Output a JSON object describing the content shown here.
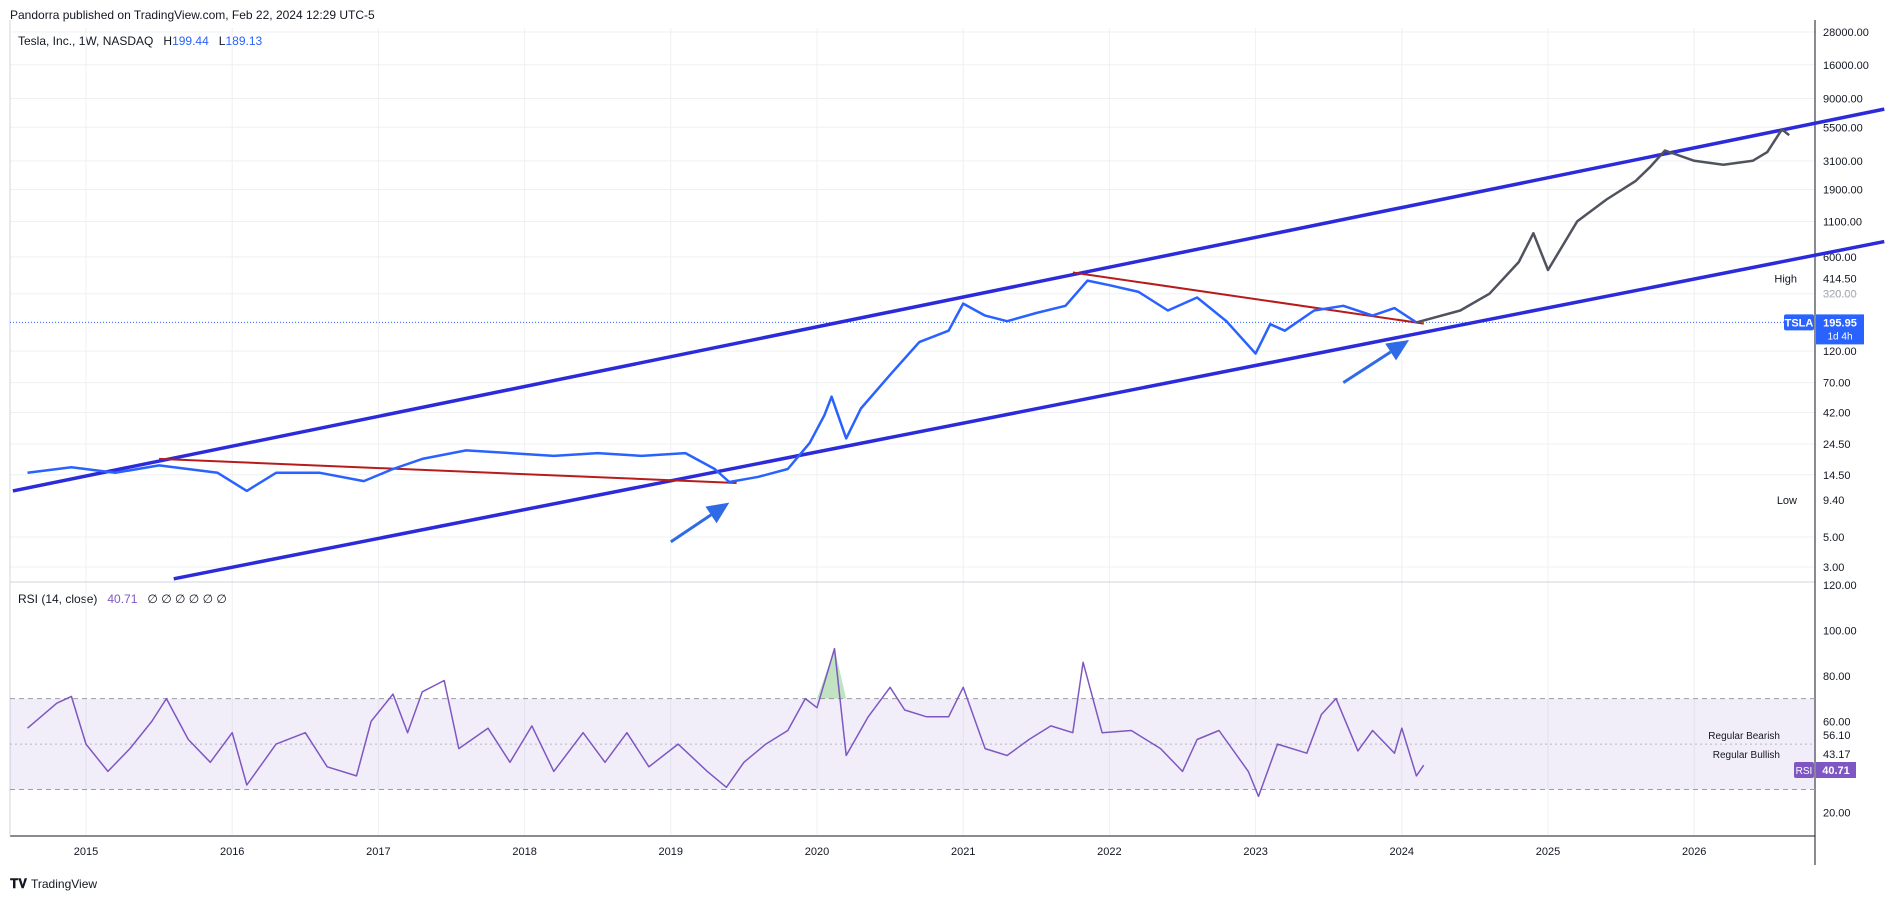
{
  "header": {
    "published": "Pandorra published on TradingView.com, Feb 22, 2024 12:29 UTC-5"
  },
  "legend": {
    "symbol": "Tesla, Inc., 1W, NASDAQ",
    "high_label": "H",
    "high_value": "199.44",
    "low_label": "L",
    "low_value": "189.13"
  },
  "rsi_legend": {
    "label": "RSI (14, close)",
    "value": "40.71",
    "placeholders": "∅ ∅ ∅ ∅ ∅ ∅"
  },
  "footer": {
    "brand": "TradingView"
  },
  "colors": {
    "price": "#2962ff",
    "projection": "#50535e",
    "channel": "#2b2bd9",
    "trendline": "#b71c1c",
    "rsi": "#7e57c2",
    "arrow": "#2f6be6"
  },
  "chart_data": [
    {
      "type": "line",
      "scale": "log",
      "series_main": "TSLA",
      "x_ticks": [
        "2015",
        "2016",
        "2017",
        "2018",
        "2019",
        "2020",
        "2021",
        "2022",
        "2023",
        "2024",
        "2025",
        "2026"
      ],
      "y_ticks": [
        "28000.00",
        "16000.00",
        "9000.00",
        "5500.00",
        "3100.00",
        "1900.00",
        "1100.00",
        "600.00",
        "414.50",
        "320.00",
        "195.95",
        "120.00",
        "70.00",
        "42.00",
        "24.50",
        "14.50",
        "9.40",
        "5.00",
        "3.00"
      ],
      "ylim": [
        2.4,
        30000
      ],
      "price_points": [
        [
          2014.6,
          15
        ],
        [
          2014.9,
          16.5
        ],
        [
          2015.2,
          15
        ],
        [
          2015.5,
          17
        ],
        [
          2015.9,
          15
        ],
        [
          2016.1,
          11
        ],
        [
          2016.3,
          15
        ],
        [
          2016.6,
          15
        ],
        [
          2016.9,
          13
        ],
        [
          2017.1,
          16
        ],
        [
          2017.3,
          19
        ],
        [
          2017.6,
          22
        ],
        [
          2017.9,
          21
        ],
        [
          2018.2,
          20
        ],
        [
          2018.5,
          21
        ],
        [
          2018.8,
          20
        ],
        [
          2019.1,
          21
        ],
        [
          2019.3,
          16
        ],
        [
          2019.4,
          12.8
        ],
        [
          2019.6,
          14
        ],
        [
          2019.8,
          16
        ],
        [
          2019.95,
          25
        ],
        [
          2020.05,
          40
        ],
        [
          2020.1,
          55
        ],
        [
          2020.2,
          27
        ],
        [
          2020.3,
          45
        ],
        [
          2020.5,
          80
        ],
        [
          2020.7,
          140
        ],
        [
          2020.9,
          170
        ],
        [
          2021.0,
          270
        ],
        [
          2021.15,
          220
        ],
        [
          2021.3,
          200
        ],
        [
          2021.5,
          230
        ],
        [
          2021.7,
          260
        ],
        [
          2021.85,
          400
        ],
        [
          2022.0,
          370
        ],
        [
          2022.2,
          330
        ],
        [
          2022.4,
          240
        ],
        [
          2022.6,
          300
        ],
        [
          2022.8,
          200
        ],
        [
          2023.0,
          115
        ],
        [
          2023.1,
          190
        ],
        [
          2023.2,
          170
        ],
        [
          2023.4,
          240
        ],
        [
          2023.6,
          260
        ],
        [
          2023.8,
          220
        ],
        [
          2023.95,
          250
        ],
        [
          2024.1,
          195.95
        ]
      ],
      "projection_points": [
        [
          2024.1,
          196
        ],
        [
          2024.4,
          240
        ],
        [
          2024.6,
          320
        ],
        [
          2024.8,
          550
        ],
        [
          2024.9,
          900
        ],
        [
          2025.0,
          480
        ],
        [
          2025.2,
          1100
        ],
        [
          2025.4,
          1600
        ],
        [
          2025.6,
          2200
        ],
        [
          2025.7,
          2800
        ],
        [
          2025.8,
          3700
        ],
        [
          2026.0,
          3100
        ],
        [
          2026.2,
          2900
        ],
        [
          2026.4,
          3100
        ],
        [
          2026.5,
          3600
        ],
        [
          2026.6,
          5300
        ],
        [
          2026.65,
          4800
        ]
      ],
      "channel_upper": [
        [
          2014.5,
          11
        ],
        [
          2027.3,
          7500
        ]
      ],
      "channel_lower": [
        [
          2015.6,
          2.45
        ],
        [
          2027.3,
          780
        ]
      ],
      "trendline_2016": [
        [
          2015.5,
          19
        ],
        [
          2019.45,
          12.6
        ]
      ],
      "trendline_2022": [
        [
          2021.75,
          460
        ],
        [
          2024.15,
          192
        ]
      ],
      "arrows": [
        {
          "from": [
            2019.0,
            4.6
          ],
          "to": [
            2019.4,
            9.0
          ]
        },
        {
          "from": [
            2023.6,
            70
          ],
          "to": [
            2024.05,
            145
          ]
        }
      ],
      "labels": {
        "high_label": "High",
        "high_value": "414.50",
        "low_label": "Low",
        "low_value": "9.40",
        "symbol": "TSLA",
        "last_value": "195.95",
        "countdown": "1d 4h"
      }
    },
    {
      "type": "line",
      "series_name": "RSI",
      "y_ticks": [
        "120.00",
        "100.00",
        "80.00",
        "60.00",
        "20.00"
      ],
      "ylim": [
        10,
        120
      ],
      "band": [
        30,
        70
      ],
      "levels": [
        {
          "label": "Regular Bearish",
          "value": "56.10"
        },
        {
          "label": "Regular Bullish",
          "value": "43.17"
        }
      ],
      "current": {
        "label": "RSI",
        "value": "40.71"
      },
      "points": [
        [
          2014.6,
          57
        ],
        [
          2014.8,
          68
        ],
        [
          2014.9,
          71
        ],
        [
          2015.0,
          50
        ],
        [
          2015.15,
          38
        ],
        [
          2015.3,
          48
        ],
        [
          2015.45,
          60
        ],
        [
          2015.55,
          70
        ],
        [
          2015.7,
          52
        ],
        [
          2015.85,
          42
        ],
        [
          2016.0,
          55
        ],
        [
          2016.1,
          32
        ],
        [
          2016.3,
          50
        ],
        [
          2016.5,
          55
        ],
        [
          2016.65,
          40
        ],
        [
          2016.85,
          36
        ],
        [
          2016.95,
          60
        ],
        [
          2017.1,
          72
        ],
        [
          2017.2,
          55
        ],
        [
          2017.3,
          73
        ],
        [
          2017.45,
          78
        ],
        [
          2017.55,
          48
        ],
        [
          2017.75,
          57
        ],
        [
          2017.9,
          42
        ],
        [
          2018.05,
          58
        ],
        [
          2018.2,
          38
        ],
        [
          2018.4,
          55
        ],
        [
          2018.55,
          42
        ],
        [
          2018.7,
          55
        ],
        [
          2018.85,
          40
        ],
        [
          2019.05,
          50
        ],
        [
          2019.25,
          38
        ],
        [
          2019.38,
          31
        ],
        [
          2019.5,
          42
        ],
        [
          2019.65,
          50
        ],
        [
          2019.8,
          56
        ],
        [
          2019.92,
          70
        ],
        [
          2020.0,
          66
        ],
        [
          2020.12,
          92
        ],
        [
          2020.2,
          45
        ],
        [
          2020.35,
          62
        ],
        [
          2020.5,
          75
        ],
        [
          2020.6,
          65
        ],
        [
          2020.75,
          62
        ],
        [
          2020.9,
          62
        ],
        [
          2021.0,
          75
        ],
        [
          2021.15,
          48
        ],
        [
          2021.3,
          45
        ],
        [
          2021.45,
          52
        ],
        [
          2021.6,
          58
        ],
        [
          2021.75,
          55
        ],
        [
          2021.82,
          86
        ],
        [
          2021.95,
          55
        ],
        [
          2022.15,
          56
        ],
        [
          2022.35,
          48
        ],
        [
          2022.5,
          38
        ],
        [
          2022.6,
          52
        ],
        [
          2022.75,
          56
        ],
        [
          2022.95,
          38
        ],
        [
          2023.02,
          27
        ],
        [
          2023.15,
          50
        ],
        [
          2023.35,
          46
        ],
        [
          2023.45,
          63
        ],
        [
          2023.55,
          70
        ],
        [
          2023.7,
          47
        ],
        [
          2023.8,
          56
        ],
        [
          2023.95,
          46
        ],
        [
          2024.0,
          57
        ],
        [
          2024.1,
          36
        ],
        [
          2024.15,
          40.71
        ]
      ]
    }
  ]
}
